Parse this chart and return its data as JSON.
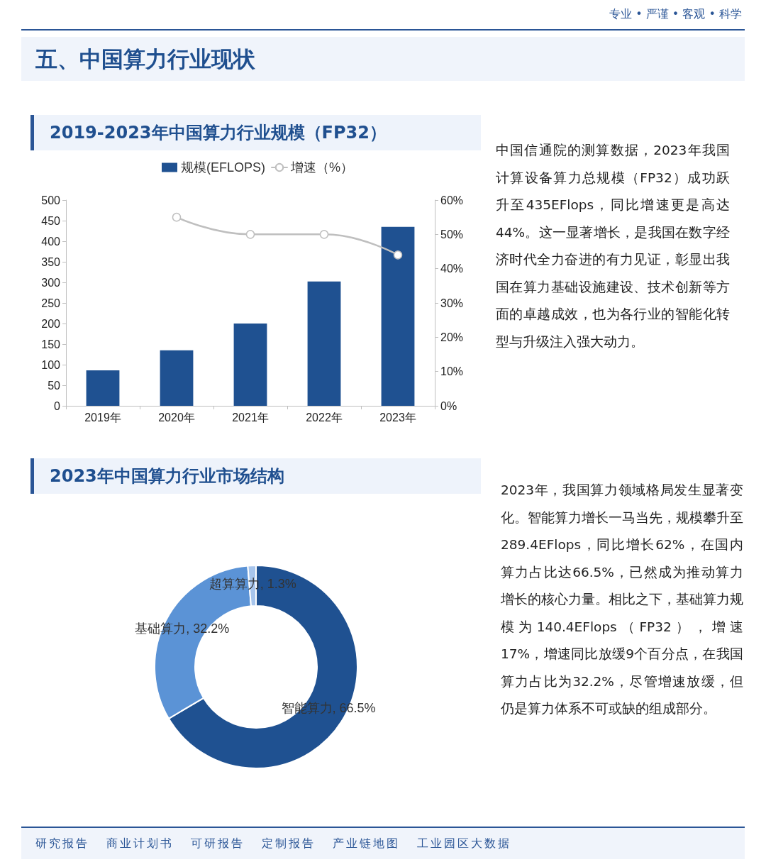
{
  "chart_data": [
    {
      "type": "bar",
      "title": "2019-2023年中国算力行业规模（FP32）",
      "categories": [
        "2019年",
        "2020年",
        "2021年",
        "2022年",
        "2023年"
      ],
      "series": [
        {
          "name": "规模(EFLOPS)",
          "type": "bar",
          "color": "#1f5191",
          "values": [
            86,
            135,
            200,
            302,
            435
          ]
        },
        {
          "name": "增速（%）",
          "type": "line",
          "axis": "y2",
          "color": "#bfbfbf",
          "marker": "circle",
          "values": [
            null,
            55,
            50,
            50,
            44
          ]
        }
      ],
      "ylim": [
        0,
        500
      ],
      "yticks": [
        0,
        50,
        100,
        150,
        200,
        250,
        300,
        350,
        400,
        450,
        500
      ],
      "y2lim": [
        0,
        60
      ],
      "y2ticks": [
        {
          "value": 0,
          "label": "0%"
        },
        {
          "value": 10,
          "label": "10%"
        },
        {
          "value": 20,
          "label": "20%"
        },
        {
          "value": 30,
          "label": "30%"
        },
        {
          "value": 40,
          "label": "40%"
        },
        {
          "value": 50,
          "label": "50%"
        },
        {
          "value": 60,
          "label": "60%"
        }
      ],
      "legend": "top",
      "grid": false,
      "annotations": [
        "五、中国算力行业现状",
        "专业 • 严谨 • 客观 • 科学",
        "中国信通院的测算数据，2023年我国计算设备算力总规模（FP32）成功跃升至435EFlops，同比增速更是高达44%。这一显著增长，是我国在数字经济时代全力奋进的有力见证，彰显出我国在算力基础设施建设、技术创新等方面的卓越成效，也为各行业的智能化转型与升级注入强大动力。"
      ]
    },
    {
      "type": "donut",
      "title": "2023年中国算力行业市场结构",
      "categories": [
        "智能算力",
        "基础算力",
        "超算算力"
      ],
      "values": [
        66.5,
        32.2,
        1.3
      ],
      "colors": [
        "#1f5191",
        "#5b93d6",
        "#a7c5ec"
      ],
      "value_labels": [
        "66.5%",
        "32.2%",
        "1.3%"
      ],
      "annotations": [
        "2023年，我国算力领域格局发生显著变化。智能算力增长一马当先，规模攀升至289.4EFlops，同比增长62%，在国内算力占比达66.5%，已然成为推动算力增长的核心力量。相比之下，基础算力规模为140.4EFlops（FP32），增速17%，增速同比放缓9个百分点，在我国算力占比为32.2%，尽管增速放缓，但仍是算力体系不可或缺的组成部分。",
        "研究报告",
        "商业计划书",
        "可研报告",
        "定制报告",
        "产业链地图",
        "工业园区大数据"
      ]
    }
  ]
}
